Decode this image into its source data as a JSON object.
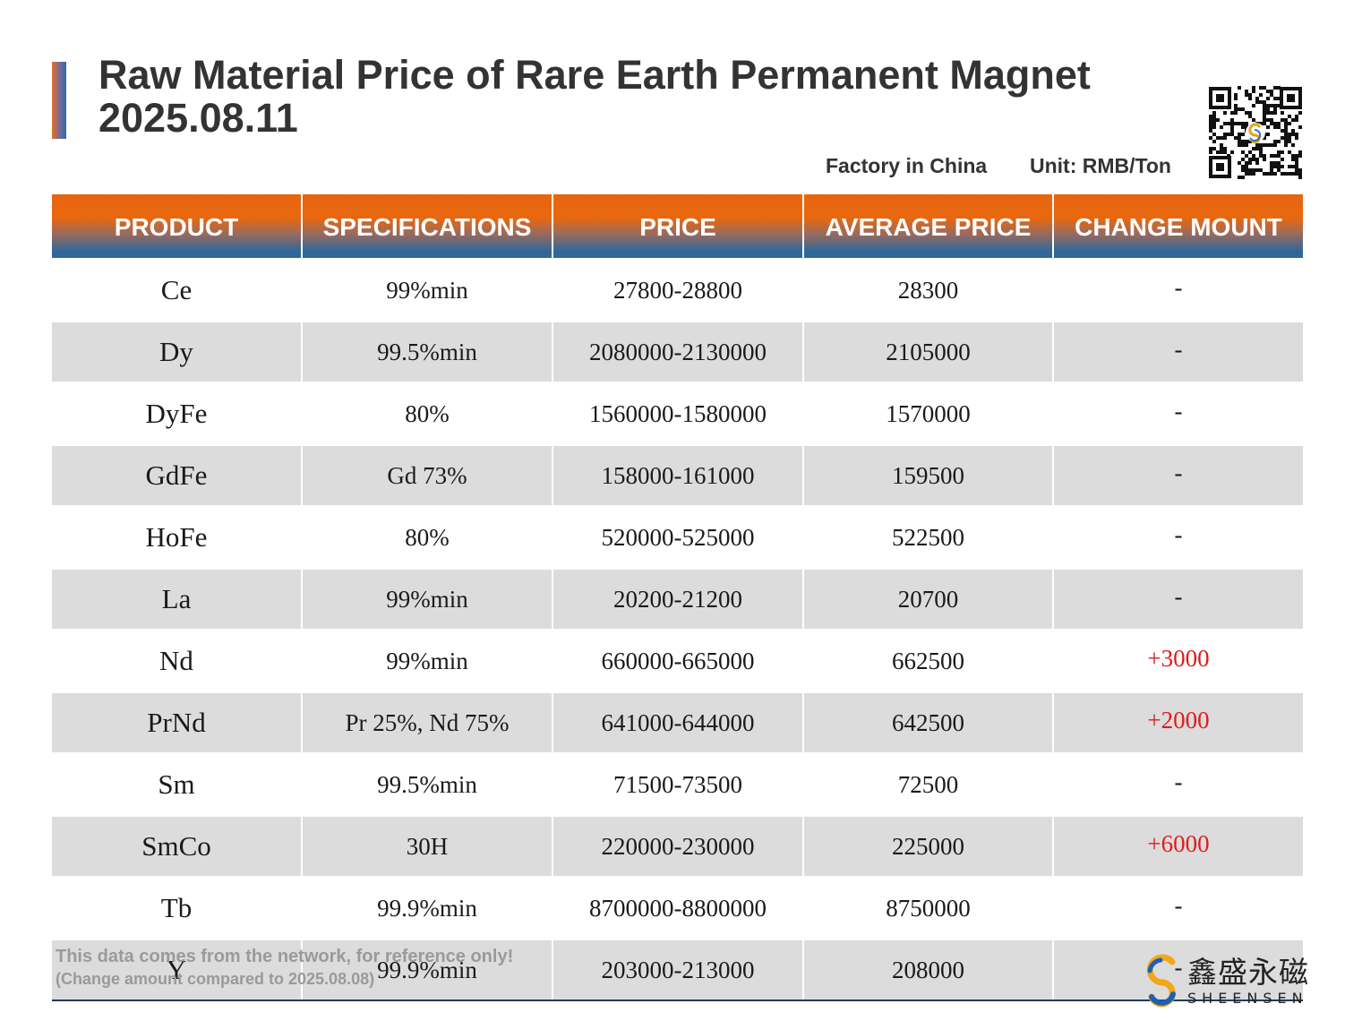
{
  "header": {
    "title": "Raw Material Price of Rare Earth Permanent Magnet",
    "date": "2025.08.11",
    "origin": "Factory in China",
    "unit": "Unit: RMB/Ton"
  },
  "colors": {
    "header_orange": "#e8650f",
    "header_blue": "#2f679a",
    "alt_row": "#dcdcdc",
    "increase": "#e01b1b"
  },
  "table": {
    "columns": [
      "PRODUCT",
      "SPECIFICATIONS",
      "PRICE",
      "AVERAGE PRICE",
      "CHANGE MOUNT"
    ],
    "rows": [
      {
        "product": "Ce",
        "spec": "99%min",
        "price": "27800-28800",
        "average": "28300",
        "change": "-"
      },
      {
        "product": "Dy",
        "spec": "99.5%min",
        "price": "2080000-2130000",
        "average": "2105000",
        "change": "-"
      },
      {
        "product": "DyFe",
        "spec": "80%",
        "price": "1560000-1580000",
        "average": "1570000",
        "change": "-"
      },
      {
        "product": "GdFe",
        "spec": "Gd 73%",
        "price": "158000-161000",
        "average": "159500",
        "change": "-"
      },
      {
        "product": "HoFe",
        "spec": "80%",
        "price": "520000-525000",
        "average": "522500",
        "change": "-"
      },
      {
        "product": "La",
        "spec": "99%min",
        "price": "20200-21200",
        "average": "20700",
        "change": "-"
      },
      {
        "product": "Nd",
        "spec": "99%min",
        "price": "660000-665000",
        "average": "662500",
        "change": "+3000"
      },
      {
        "product": "PrNd",
        "spec": "Pr 25%, Nd 75%",
        "price": "641000-644000",
        "average": "642500",
        "change": "+2000"
      },
      {
        "product": "Sm",
        "spec": "99.5%min",
        "price": "71500-73500",
        "average": "72500",
        "change": "-"
      },
      {
        "product": "SmCo",
        "spec": "30H",
        "price": "220000-230000",
        "average": "225000",
        "change": "+6000"
      },
      {
        "product": "Tb",
        "spec": "99.9%min",
        "price": "8700000-8800000",
        "average": "8750000",
        "change": "-"
      },
      {
        "product": "Y",
        "spec": "99.9%min",
        "price": "203000-213000",
        "average": "208000",
        "change": "-"
      }
    ]
  },
  "footer": {
    "note": "This data comes from the network, for reference only!",
    "comparison": "(Change amount compared to 2025.08.08)"
  },
  "logo": {
    "name_cn": "鑫盛永磁",
    "name_en": "SHEENSEN",
    "qr_icon": "qr-code-icon"
  }
}
